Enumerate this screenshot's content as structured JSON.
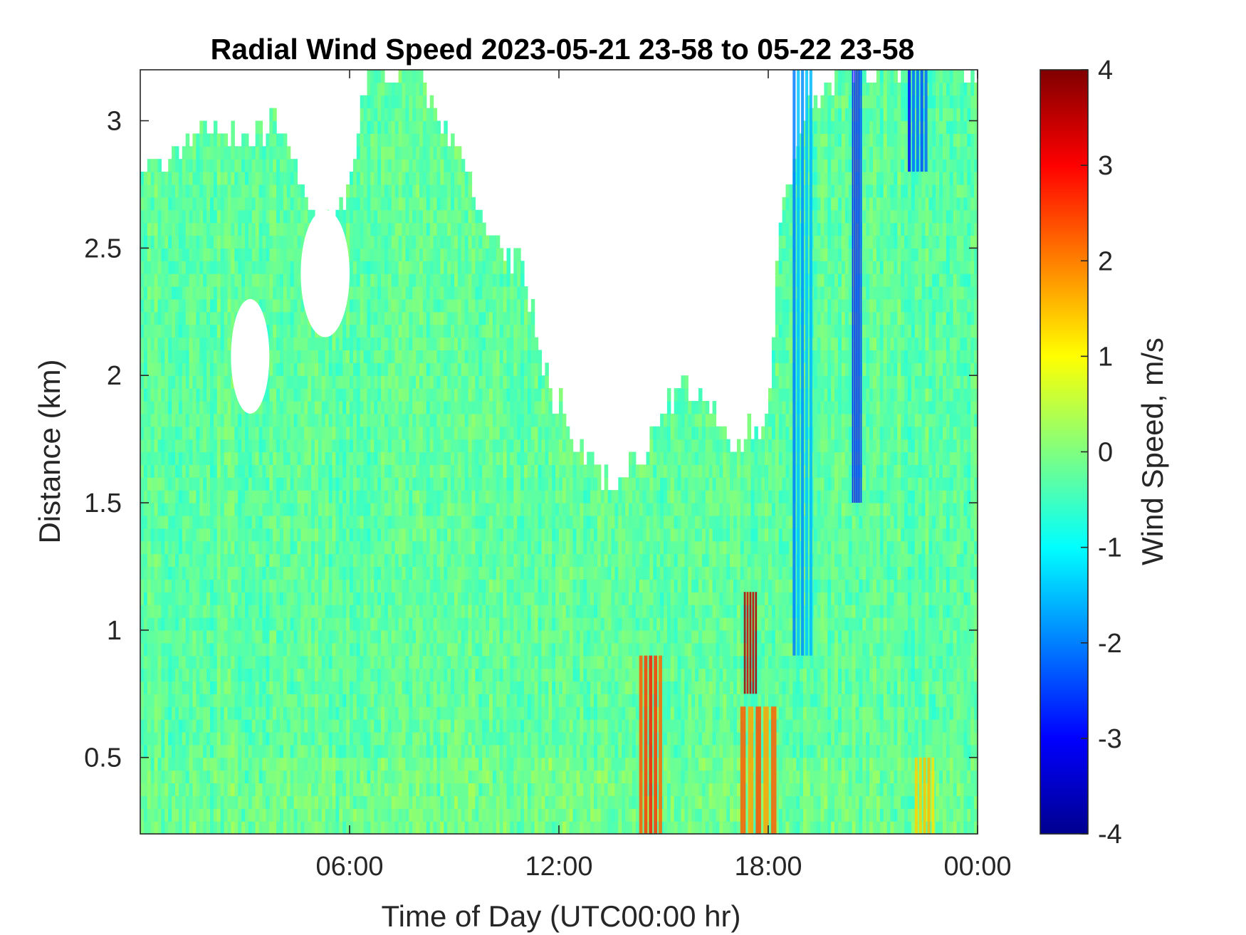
{
  "chart_data": {
    "type": "heatmap",
    "title": "Radial Wind Speed 2023-05-21 23-58 to 05-22 23-58",
    "xlabel": "Time of Day (UTC00:00 hr)",
    "ylabel": "Distance (km)",
    "x_unit": "hours",
    "xlim": [
      0,
      24
    ],
    "ylim": [
      0.2,
      3.2
    ],
    "x_ticks": [
      {
        "value": 6,
        "label": "06:00"
      },
      {
        "value": 12,
        "label": "12:00"
      },
      {
        "value": 18,
        "label": "18:00"
      },
      {
        "value": 24,
        "label": "00:00"
      }
    ],
    "y_ticks": [
      {
        "value": 0.5,
        "label": "0.5"
      },
      {
        "value": 1.0,
        "label": "1"
      },
      {
        "value": 1.5,
        "label": "1.5"
      },
      {
        "value": 2.0,
        "label": "2"
      },
      {
        "value": 2.5,
        "label": "2.5"
      },
      {
        "value": 3.0,
        "label": "3"
      }
    ],
    "colorbar": {
      "label": "Wind Speed, m/s",
      "colormap": "jet",
      "clim": [
        -4,
        4
      ],
      "ticks": [
        {
          "value": 4,
          "label": "4"
        },
        {
          "value": 3,
          "label": "3"
        },
        {
          "value": 2,
          "label": "2"
        },
        {
          "value": 1,
          "label": "1"
        },
        {
          "value": 0,
          "label": "0"
        },
        {
          "value": -1,
          "label": "-1"
        },
        {
          "value": -2,
          "label": "-2"
        },
        {
          "value": -3,
          "label": "-3"
        },
        {
          "value": -4,
          "label": "-4"
        }
      ]
    },
    "dominant_value_range": [
      -1,
      0.3
    ],
    "data_top_km_by_hour": [
      {
        "hour": 0,
        "top_km": 2.8
      },
      {
        "hour": 0.75,
        "top_km": 2.85
      },
      {
        "hour": 2,
        "top_km": 3.0
      },
      {
        "hour": 3,
        "top_km": 2.92
      },
      {
        "hour": 4,
        "top_km": 3.0
      },
      {
        "hour": 5,
        "top_km": 2.6
      },
      {
        "hour": 6,
        "top_km": 2.7
      },
      {
        "hour": 6.5,
        "top_km": 3.2
      },
      {
        "hour": 8,
        "top_km": 3.2
      },
      {
        "hour": 8.5,
        "top_km": 3.0
      },
      {
        "hour": 9.2,
        "top_km": 2.85
      },
      {
        "hour": 10,
        "top_km": 2.6
      },
      {
        "hour": 11,
        "top_km": 2.4
      },
      {
        "hour": 11.6,
        "top_km": 2.0
      },
      {
        "hour": 12.5,
        "top_km": 1.75
      },
      {
        "hour": 13.5,
        "top_km": 1.55
      },
      {
        "hour": 14.5,
        "top_km": 1.7
      },
      {
        "hour": 15.5,
        "top_km": 2.0
      },
      {
        "hour": 16.2,
        "top_km": 1.9
      },
      {
        "hour": 17,
        "top_km": 1.75
      },
      {
        "hour": 18,
        "top_km": 1.8
      },
      {
        "hour": 18.3,
        "top_km": 2.6
      },
      {
        "hour": 19,
        "top_km": 3.0
      },
      {
        "hour": 20,
        "top_km": 3.2
      },
      {
        "hour": 24,
        "top_km": 3.2
      }
    ],
    "data_gaps": [
      {
        "hour_start": 4.6,
        "hour_end": 6.0,
        "km_bottom": 2.15,
        "km_top": 2.65
      },
      {
        "hour_start": 2.6,
        "hour_end": 3.7,
        "km_bottom": 1.85,
        "km_top": 2.3
      }
    ],
    "features": [
      {
        "hour_start": 14.3,
        "hour_end": 15.0,
        "km_bottom": 0.2,
        "km_top": 0.9,
        "value": 2.5
      },
      {
        "hour_start": 17.3,
        "hour_end": 17.7,
        "km_bottom": 0.75,
        "km_top": 1.15,
        "value": 3.6
      },
      {
        "hour_start": 17.2,
        "hour_end": 18.3,
        "km_bottom": 0.2,
        "km_top": 0.7,
        "value": 2.0
      },
      {
        "hour_start": 18.7,
        "hour_end": 19.3,
        "km_bottom": 0.9,
        "km_top": 3.2,
        "value": -1.8
      },
      {
        "hour_start": 20.4,
        "hour_end": 20.7,
        "km_bottom": 1.5,
        "km_top": 3.2,
        "value": -2.8
      },
      {
        "hour_start": 22.0,
        "hour_end": 22.6,
        "km_bottom": 2.8,
        "km_top": 3.2,
        "value": -2.5
      },
      {
        "hour_start": 22.2,
        "hour_end": 22.8,
        "km_bottom": 0.2,
        "km_top": 0.5,
        "value": 1.5
      }
    ]
  }
}
